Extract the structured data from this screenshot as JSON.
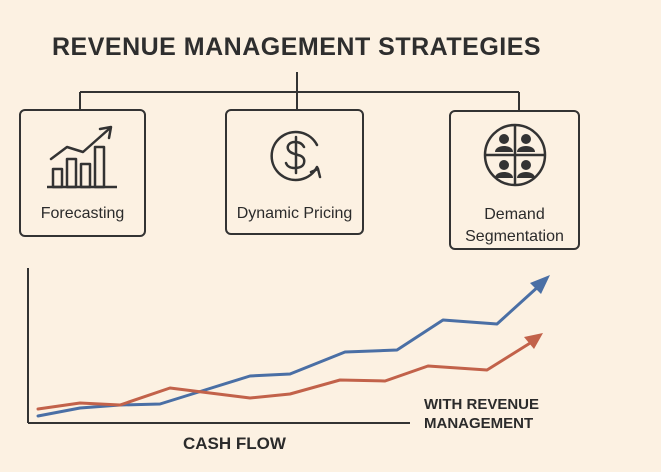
{
  "title": "REVENUE MANAGEMENT STRATEGIES",
  "strategies": [
    {
      "label": "Forecasting",
      "icon": "bar-chart-trend-icon"
    },
    {
      "label": "Dynamic Pricing",
      "icon": "dollar-cycle-icon"
    },
    {
      "label": "Demand Segmentation",
      "icon": "segmented-people-icon"
    }
  ],
  "chart": {
    "xlabel": "CASH FLOW",
    "annotation": "WITH REVENUE\nMANAGEMENT",
    "colors": {
      "blue": "#4a6fa5",
      "red": "#c2624a"
    }
  }
}
